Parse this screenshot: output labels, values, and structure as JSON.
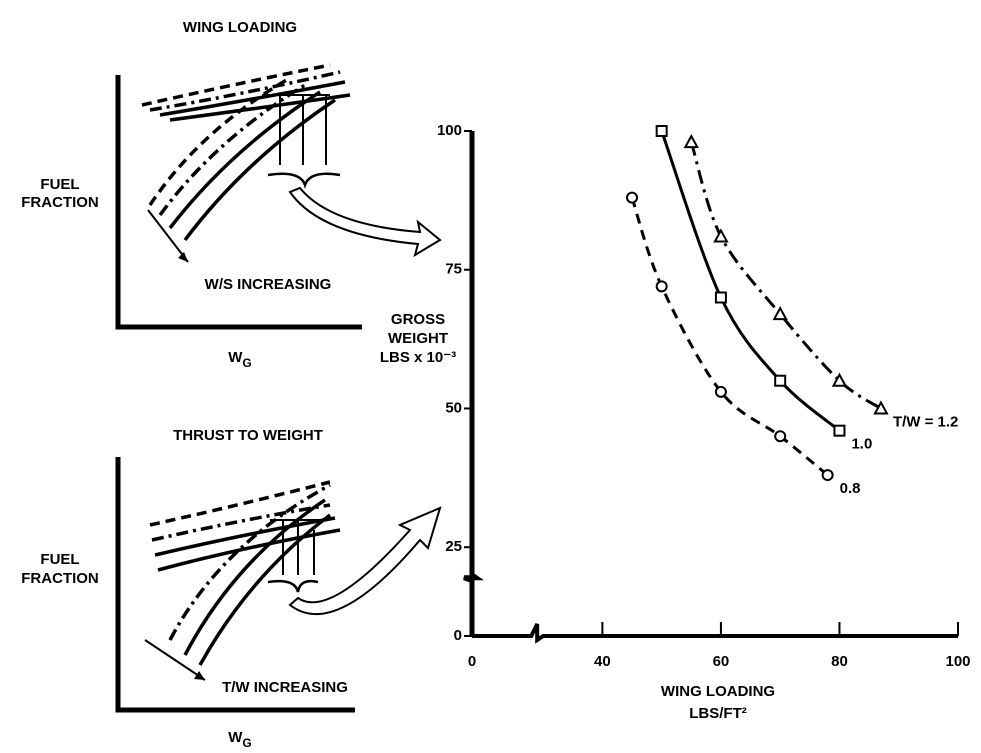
{
  "panels": [
    {
      "title": "WING LOADING",
      "y_label": [
        "FUEL",
        "FRACTION"
      ],
      "x_label": "W",
      "x_label_sub": "G",
      "annotation": "W/S INCREASING"
    },
    {
      "title": "THRUST TO WEIGHT",
      "y_label": [
        "FUEL",
        "FRACTION"
      ],
      "x_label": "W",
      "x_label_sub": "G",
      "annotation": "T/W INCREASING"
    }
  ],
  "chart_data": {
    "type": "line",
    "x_label": [
      "WING LOADING",
      "LBS/FT²"
    ],
    "y_label": [
      "GROSS",
      "WEIGHT",
      "LBS x 10⁻³"
    ],
    "xlim": [
      0,
      100
    ],
    "xticks": [
      0,
      40,
      60,
      80,
      100
    ],
    "xbreak": [
      10,
      30
    ],
    "ylim": [
      0,
      100
    ],
    "yticks": [
      0,
      25,
      50,
      75,
      100
    ],
    "ybreak": [
      10,
      20
    ],
    "series": [
      {
        "name": "T/W = 1.2",
        "color": "#000000",
        "dash": "dashdot",
        "marker": "triangle",
        "x": [
          55,
          60,
          70,
          80,
          87
        ],
        "values": [
          98,
          81,
          67,
          55,
          50
        ]
      },
      {
        "name": "1.0",
        "color": "#000000",
        "dash": "solid",
        "marker": "square",
        "x": [
          50,
          60,
          70,
          80
        ],
        "values": [
          100,
          70,
          55,
          46
        ]
      },
      {
        "name": "0.8",
        "color": "#000000",
        "dash": "dashed",
        "marker": "circle",
        "x": [
          45,
          50,
          60,
          70,
          78
        ],
        "values": [
          88,
          72,
          53,
          45,
          38
        ]
      }
    ]
  }
}
